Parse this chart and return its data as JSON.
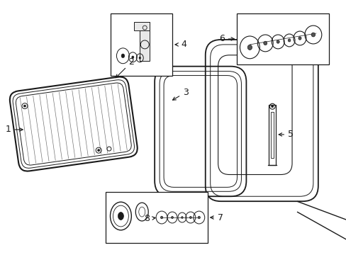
{
  "bg_color": "#ffffff",
  "line_color": "#1a1a1a",
  "fig_w": 4.89,
  "fig_h": 3.6,
  "dpi": 100,
  "gray": "#888888",
  "light_gray": "#cccccc"
}
